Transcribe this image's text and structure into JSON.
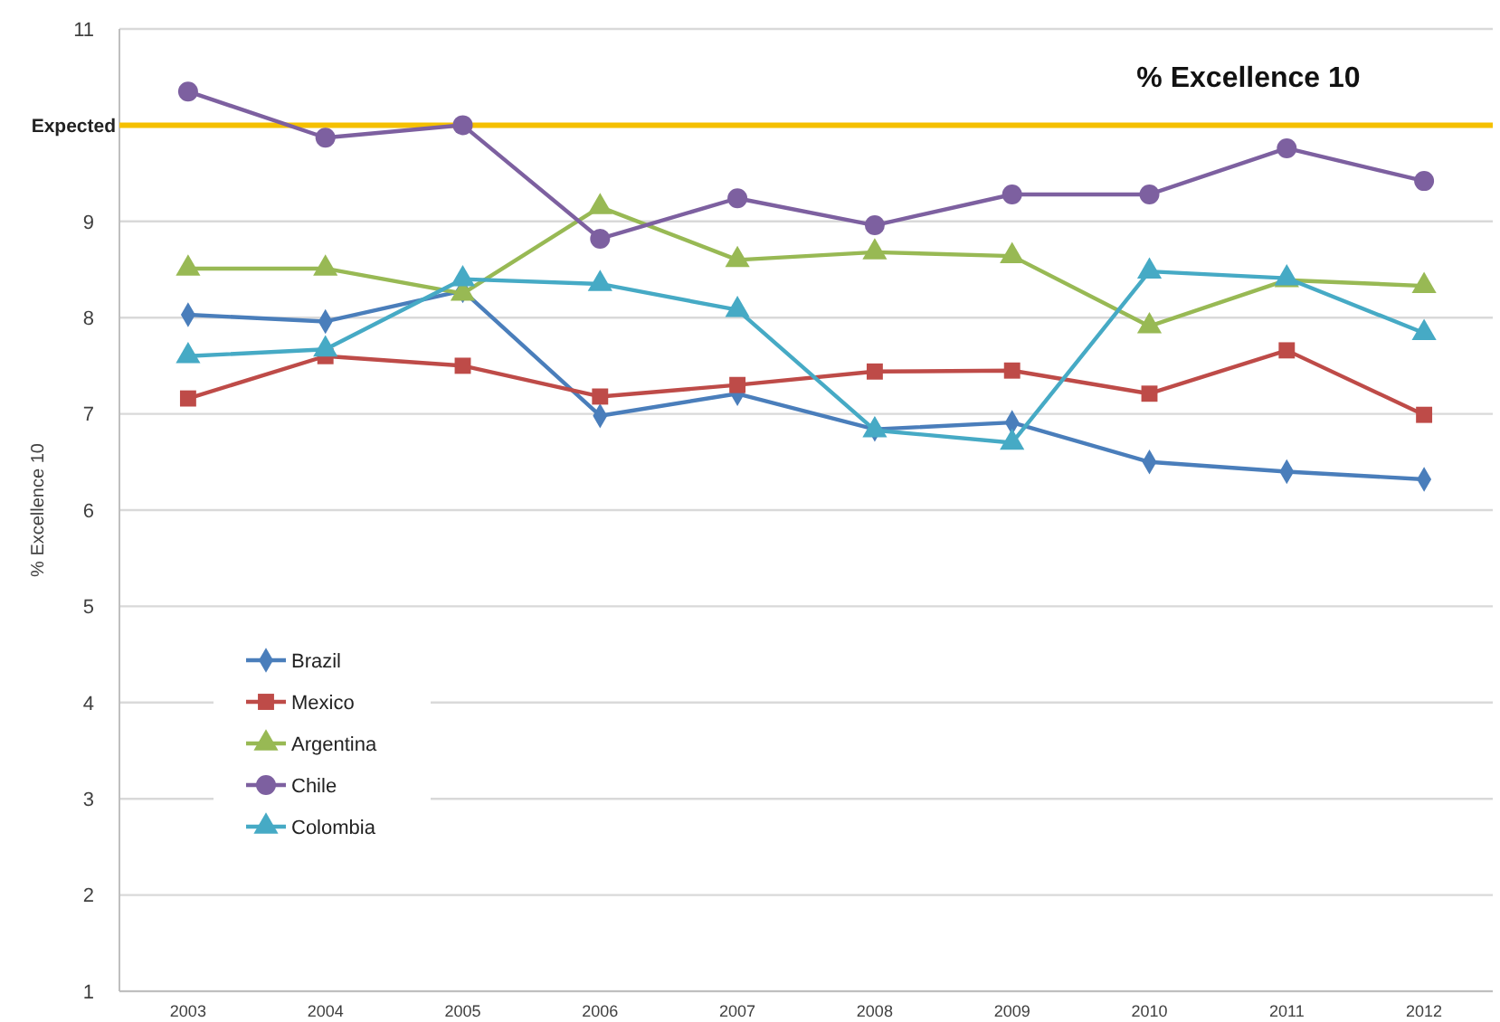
{
  "chart_data": {
    "type": "line",
    "title": "% Excellence 10",
    "ylabel": "% Excellence 10",
    "categories": [
      "2003",
      "2004",
      "2005",
      "2006",
      "2007",
      "2008",
      "2009",
      "2010",
      "2011",
      "2012"
    ],
    "series": [
      {
        "name": "Brazil",
        "color": "#4a7ebb",
        "marker": "diamond",
        "values": [
          8.03,
          7.96,
          8.28,
          6.98,
          7.21,
          6.84,
          6.91,
          6.5,
          6.4,
          6.32
        ]
      },
      {
        "name": "Mexico",
        "color": "#be4b48",
        "marker": "square",
        "values": [
          7.16,
          7.6,
          7.5,
          7.18,
          7.3,
          7.44,
          7.45,
          7.21,
          7.66,
          6.99
        ]
      },
      {
        "name": "Argentina",
        "color": "#98b954",
        "marker": "triangle",
        "values": [
          8.51,
          8.51,
          8.25,
          9.15,
          8.6,
          8.68,
          8.64,
          7.91,
          8.39,
          8.33
        ]
      },
      {
        "name": "Chile",
        "color": "#7d60a0",
        "marker": "circle",
        "values": [
          10.35,
          9.87,
          10.0,
          8.82,
          9.24,
          8.96,
          9.28,
          9.28,
          9.76,
          9.42
        ]
      },
      {
        "name": "Colombia",
        "color": "#46aac5",
        "marker": "triangle",
        "values": [
          7.6,
          7.67,
          8.4,
          8.35,
          8.08,
          6.83,
          6.7,
          8.48,
          8.41,
          7.84
        ]
      }
    ],
    "ylim": [
      1,
      11
    ],
    "yticks": [
      1,
      2,
      3,
      4,
      5,
      6,
      7,
      8,
      9,
      11
    ],
    "ref_lines": [
      {
        "axis": "y",
        "value": 10,
        "label": "Expected",
        "color": "#f5c000"
      }
    ],
    "grid": "y",
    "legend": "left",
    "line_style": "solid"
  }
}
